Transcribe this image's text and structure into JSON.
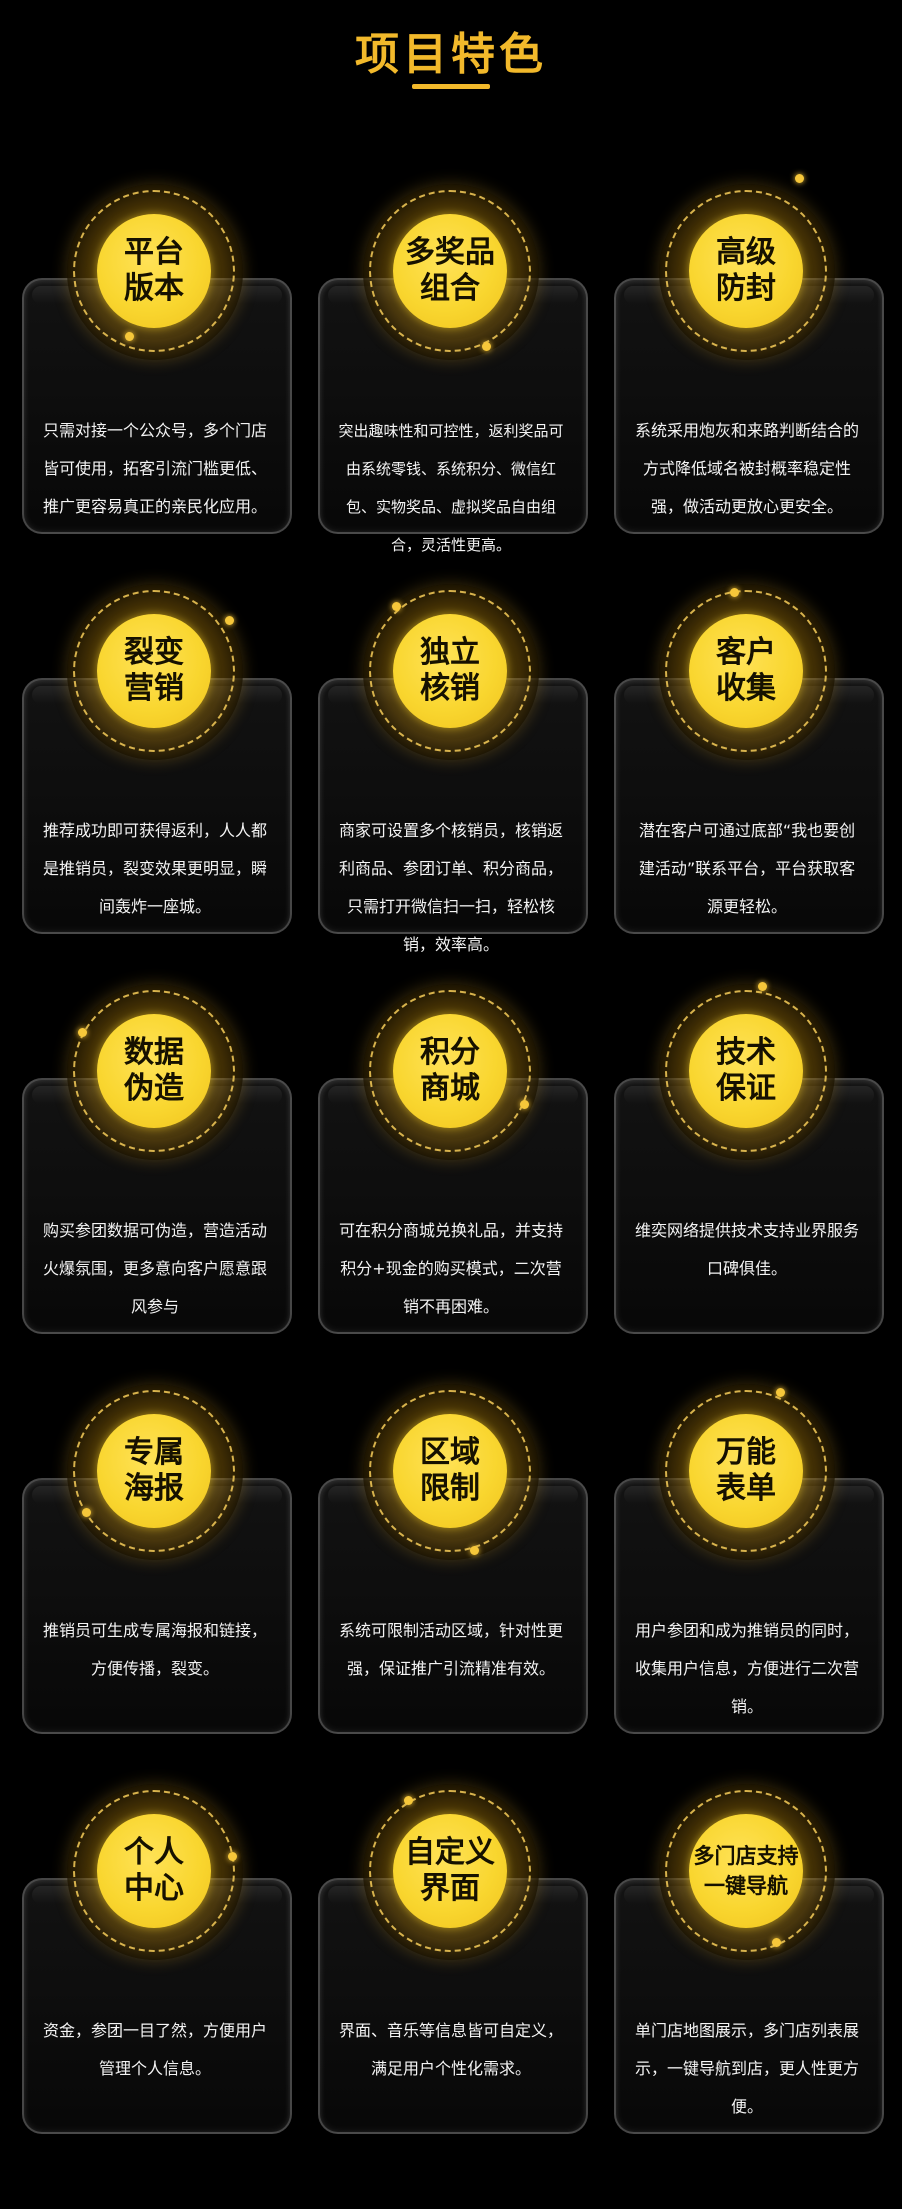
{
  "header": {
    "title": "项目特色"
  },
  "features": [
    {
      "title": "平台\n版本",
      "desc": "只需对接一个公众号，多个门店皆可使用，拓客引流门槛更低、推广更容易真正的亲民化应用。"
    },
    {
      "title": "多奖品\n组合",
      "desc": "突出趣味性和可控性，返利奖品可由系统零钱、系统积分、微信红包、实物奖品、虚拟奖品自由组合，灵活性更高。"
    },
    {
      "title": "高级\n防封",
      "desc": "系统采用炮灰和来路判断结合的方式降低域名被封概率稳定性强，做活动更放心更安全。"
    },
    {
      "title": "裂变\n营销",
      "desc": "推荐成功即可获得返利，人人都是推销员，裂变效果更明显，瞬间轰炸一座城。"
    },
    {
      "title": "独立\n核销",
      "desc": "商家可设置多个核销员，核销返利商品、参团订单、积分商品，只需打开微信扫一扫，轻松核销，效率高。"
    },
    {
      "title": "客户\n收集",
      "desc": "潜在客户可通过底部“我也要创建活动”联系平台，平台获取客源更轻松。"
    },
    {
      "title": "数据\n伪造",
      "desc": "购买参团数据可伪造，营造活动火爆氛围，更多意向客户愿意跟风参与"
    },
    {
      "title": "积分\n商城",
      "desc": "可在积分商城兑换礼品，并支持积分+现金的购买模式，二次营销不再困难。"
    },
    {
      "title": "技术\n保证",
      "desc": "维奕网络提供技术支持业界服务口碑俱佳。"
    },
    {
      "title": "专属\n海报",
      "desc": "推销员可生成专属海报和链接，方便传播，裂变。"
    },
    {
      "title": "区域\n限制",
      "desc": "系统可限制活动区域，针对性更强，保证推广引流精准有效。"
    },
    {
      "title": "万能\n表单",
      "desc": "用户参团和成为推销员的同时，收集用户信息，方便进行二次营销。"
    },
    {
      "title": "个人\n中心",
      "desc": "资金，参团一目了然，方便用户管理个人信息。"
    },
    {
      "title": "自定义\n界面",
      "desc": "界面、音乐等信息皆可自定义，满足用户个性化需求。"
    },
    {
      "title": "多门店支持\n一键导航",
      "desc": "单门店地图展示，多门店列表展示，一键导航到店，更人性更方便。"
    }
  ],
  "colors": {
    "accent": "#f2b92b",
    "circle": "#f9d62f",
    "background": "#000000"
  }
}
